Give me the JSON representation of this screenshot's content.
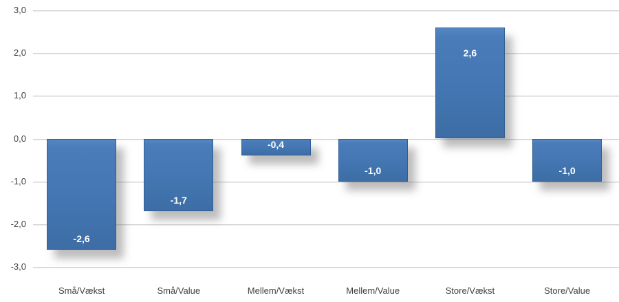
{
  "chart_data": {
    "type": "bar",
    "title": "",
    "xlabel": "",
    "ylabel": "",
    "categories": [
      "Små/Vækst",
      "Små/Value",
      "Mellem/Vækst",
      "Mellem/Value",
      "Store/Vækst",
      "Store/Value"
    ],
    "values": [
      -2.6,
      -1.7,
      -0.4,
      -1.0,
      2.6,
      -1.0
    ],
    "data_labels": [
      "-2,6",
      "-1,7",
      "-0,4",
      "-1,0",
      "2,6",
      "-1,0"
    ],
    "y_tick_labels": [
      "3,0",
      "2,0",
      "1,0",
      "0,0",
      "-1,0",
      "-2,0",
      "-3,0"
    ],
    "y_tick_values": [
      3,
      2,
      1,
      0,
      -1,
      -2,
      -3
    ],
    "ylim": [
      -3,
      3
    ],
    "grid": true,
    "legend": "none",
    "decimal_separator": ",",
    "colors": {
      "bar_fill": "#4376B2",
      "bar_fill_light": "#5486C2",
      "bar_fill_dark": "#3D6DA4",
      "bar_border": "#2E5E94",
      "bar_label_text": "#FFFFFF",
      "axis_text": "#3F3F3F",
      "gridline": "#D2D2D2",
      "background": "#FFFFFF"
    }
  }
}
